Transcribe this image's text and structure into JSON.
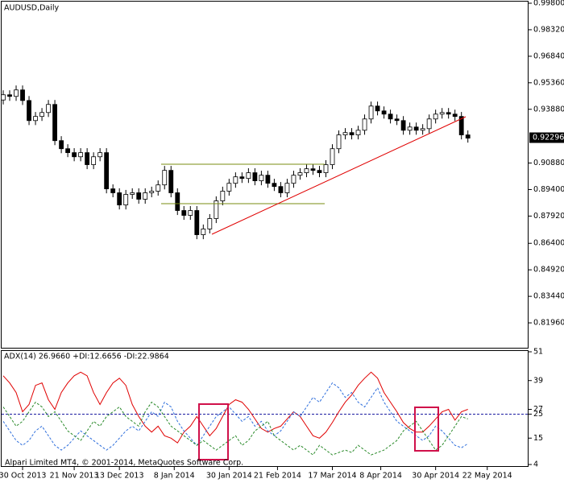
{
  "chart_data": [
    {
      "type": "candlestick",
      "title": "AUDUSD,Daily",
      "open": [
        0.944,
        0.9469,
        0.946,
        0.9496,
        0.9437,
        0.9325,
        0.9348,
        0.937,
        0.9415,
        0.9213,
        0.9168,
        0.9146,
        0.9123,
        0.9146,
        0.9079,
        0.9123,
        0.9146,
        0.8944,
        0.8922,
        0.8854,
        0.8913,
        0.8922,
        0.8886,
        0.8922,
        0.8931,
        0.8966,
        0.9047,
        0.8922,
        0.8823,
        0.8796,
        0.8823,
        0.8688,
        0.872,
        0.8778,
        0.8877,
        0.8931,
        0.8975,
        0.9011,
        0.9002,
        0.9034,
        0.8989,
        0.902,
        0.8975,
        0.8957,
        0.8922,
        0.8975,
        0.902,
        0.9034,
        0.9056,
        0.9047,
        0.9034,
        0.9079,
        0.9168,
        0.9245,
        0.9258,
        0.9245,
        0.9271,
        0.9334,
        0.9406,
        0.9379,
        0.9361,
        0.9334,
        0.9325,
        0.9271,
        0.9289,
        0.9271,
        0.928,
        0.9334,
        0.9361,
        0.937,
        0.9361,
        0.9348,
        0.9245
      ],
      "high": [
        0.9494,
        0.9494,
        0.9521,
        0.9521,
        0.9462,
        0.9373,
        0.9395,
        0.944,
        0.944,
        0.9238,
        0.9193,
        0.9171,
        0.9171,
        0.9171,
        0.9148,
        0.9171,
        0.9171,
        0.8969,
        0.8947,
        0.8938,
        0.8947,
        0.8947,
        0.8947,
        0.8956,
        0.8991,
        0.9072,
        0.9072,
        0.8947,
        0.8848,
        0.8848,
        0.8848,
        0.8745,
        0.8803,
        0.8902,
        0.8956,
        0.9,
        0.9036,
        0.9036,
        0.9059,
        0.9059,
        0.9045,
        0.9045,
        0.9,
        0.8982,
        0.9,
        0.9045,
        0.9059,
        0.9081,
        0.9081,
        0.9072,
        0.9104,
        0.9193,
        0.927,
        0.9283,
        0.9283,
        0.9296,
        0.9359,
        0.9431,
        0.9431,
        0.9404,
        0.9386,
        0.9359,
        0.935,
        0.9314,
        0.9314,
        0.9305,
        0.9359,
        0.9386,
        0.9395,
        0.9395,
        0.9386,
        0.9373,
        0.927
      ],
      "low": [
        0.9415,
        0.9435,
        0.9435,
        0.9412,
        0.93,
        0.93,
        0.9323,
        0.9345,
        0.9188,
        0.9143,
        0.9121,
        0.9098,
        0.9098,
        0.9054,
        0.9054,
        0.9098,
        0.8919,
        0.8897,
        0.8829,
        0.8829,
        0.8888,
        0.8861,
        0.8861,
        0.8897,
        0.8906,
        0.8941,
        0.8897,
        0.8798,
        0.8771,
        0.8771,
        0.8663,
        0.8663,
        0.8695,
        0.8753,
        0.8852,
        0.8906,
        0.895,
        0.8977,
        0.8977,
        0.8964,
        0.8964,
        0.895,
        0.8932,
        0.8897,
        0.8897,
        0.895,
        0.8995,
        0.9009,
        0.9022,
        0.9009,
        0.9009,
        0.9054,
        0.9143,
        0.922,
        0.922,
        0.922,
        0.9246,
        0.9309,
        0.9354,
        0.9336,
        0.9309,
        0.93,
        0.9246,
        0.9246,
        0.9246,
        0.9246,
        0.9255,
        0.9309,
        0.9336,
        0.9336,
        0.9323,
        0.922,
        0.9202
      ],
      "close": [
        0.9469,
        0.946,
        0.9496,
        0.9437,
        0.9325,
        0.9348,
        0.937,
        0.9415,
        0.9213,
        0.9168,
        0.9146,
        0.9123,
        0.9146,
        0.9079,
        0.9123,
        0.9146,
        0.8944,
        0.8922,
        0.8854,
        0.8913,
        0.8922,
        0.8886,
        0.8922,
        0.8931,
        0.8966,
        0.9047,
        0.8922,
        0.8823,
        0.8796,
        0.8823,
        0.8688,
        0.872,
        0.8778,
        0.8877,
        0.8931,
        0.8975,
        0.9011,
        0.9002,
        0.9034,
        0.8989,
        0.902,
        0.8975,
        0.8957,
        0.8922,
        0.8975,
        0.902,
        0.9034,
        0.9056,
        0.9047,
        0.9034,
        0.9079,
        0.9168,
        0.9245,
        0.9258,
        0.9245,
        0.9271,
        0.9334,
        0.9406,
        0.9379,
        0.9361,
        0.9334,
        0.9325,
        0.9271,
        0.9289,
        0.9271,
        0.928,
        0.9334,
        0.9361,
        0.937,
        0.9361,
        0.9348,
        0.9245,
        0.9227
      ],
      "up_color": "#ffffff",
      "down_color": "#000000",
      "line_color": "#000000",
      "ylim": [
        0.8057,
        0.9989
      ],
      "yticks": [
        {
          "value": 0.998,
          "label": "0.99800"
        },
        {
          "value": 0.9832,
          "label": "0.98320"
        },
        {
          "value": 0.9684,
          "label": "0.96840"
        },
        {
          "value": 0.9536,
          "label": "0.95360"
        },
        {
          "value": 0.9388,
          "label": "0.93880"
        },
        {
          "value": 0.9088,
          "label": "0.90880"
        },
        {
          "value": 0.894,
          "label": "0.89400"
        },
        {
          "value": 0.8792,
          "label": "0.87920"
        },
        {
          "value": 0.864,
          "label": "0.86400"
        },
        {
          "value": 0.8492,
          "label": "0.84920"
        },
        {
          "value": 0.8344,
          "label": "0.83440"
        },
        {
          "value": 0.8196,
          "label": "0.81960"
        }
      ],
      "last_price": 0.92296,
      "xlim": [
        -0.25,
        81.4
      ],
      "xticks": [
        {
          "value": 3,
          "label": "30 Oct 2013"
        },
        {
          "value": 11,
          "label": "21 Nov 2013"
        },
        {
          "value": 18,
          "label": "13 Dec 2013"
        },
        {
          "value": 26.5,
          "label": "8 Jan 2014"
        },
        {
          "value": 35,
          "label": "30 Jan 2014"
        },
        {
          "value": 42.5,
          "label": "21 Feb 2014"
        },
        {
          "value": 51,
          "label": "17 Mar 2014"
        },
        {
          "value": 58.5,
          "label": "8 Apr 2014"
        },
        {
          "value": 67,
          "label": "30 Apr 2014"
        },
        {
          "value": 75,
          "label": "22 May 2014"
        }
      ]
    },
    {
      "type": "line",
      "title": "ADX(14) 26.9660 +DI:12.6656 -DI:22.9864",
      "series": [
        {
          "color": "#e00000",
          "dash": false,
          "values": [
            41,
            38,
            34,
            26,
            29,
            37,
            38,
            31,
            27,
            34,
            38,
            41,
            42.5,
            41,
            34,
            29,
            34,
            38,
            40,
            37,
            29,
            24,
            20,
            17.5,
            20,
            16,
            15,
            13,
            17.5,
            20,
            24,
            20,
            16,
            19,
            24,
            29,
            31,
            30,
            27,
            23,
            19,
            17.5,
            19,
            20,
            23,
            26,
            24,
            20,
            16,
            15,
            17.5,
            21.5,
            26,
            30,
            33,
            37,
            40,
            42.5,
            40,
            34,
            30,
            26,
            21.5,
            19,
            17.5,
            17.5,
            20,
            23,
            26,
            27,
            22.5,
            26,
            27
          ]
        },
        {
          "color": "#2f6fdc",
          "dash": true,
          "values": [
            22,
            18,
            14,
            12,
            14,
            18,
            20,
            16,
            12,
            10,
            12,
            15,
            18,
            16,
            14,
            12,
            10,
            12,
            15,
            18,
            20,
            18,
            22,
            26,
            24,
            30,
            28,
            22,
            18,
            15,
            12,
            16,
            20,
            24,
            26,
            28,
            25,
            22,
            24,
            20,
            22,
            18,
            16,
            18,
            22,
            26,
            24,
            28,
            32,
            30,
            34,
            38,
            36,
            32,
            34,
            30,
            28,
            32,
            36,
            30,
            26,
            22,
            20,
            18,
            16,
            14,
            16,
            20,
            18,
            15,
            12,
            11,
            12.7
          ]
        },
        {
          "color": "#2a8a2a",
          "dash": true,
          "values": [
            28,
            24,
            20,
            22,
            26,
            30,
            28,
            24,
            26,
            22,
            18,
            16,
            14,
            18,
            22,
            20,
            24,
            26,
            28,
            24,
            22,
            20,
            26,
            30,
            28,
            24,
            20,
            18,
            16,
            14,
            12,
            14,
            12,
            10,
            12,
            14,
            16,
            12,
            14,
            18,
            20,
            22,
            16,
            14,
            12,
            10,
            12,
            10,
            8,
            12,
            10,
            8,
            9,
            10,
            9,
            12,
            10,
            8,
            9,
            10,
            12,
            14,
            18,
            20,
            22,
            18,
            14,
            10,
            12,
            16,
            20,
            24,
            23
          ]
        }
      ],
      "ylim": [
        3,
        51
      ],
      "yticks": [
        51,
        39,
        27,
        25,
        15,
        4
      ],
      "level": 25,
      "level_color": "#1a1aa0"
    }
  ],
  "copyright": "Alpari Limited MT4, © 2001-2014, MetaQuotes Software Corp."
}
